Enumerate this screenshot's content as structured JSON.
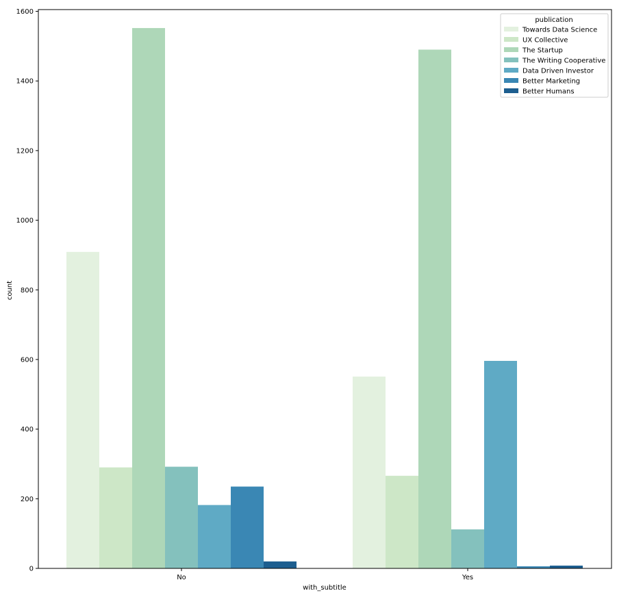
{
  "chart_data": {
    "type": "bar",
    "title": "",
    "xlabel": "with_subtitle",
    "ylabel": "count",
    "categories": [
      "No",
      "Yes"
    ],
    "ylim": [
      0,
      1605
    ],
    "yticks": [
      0,
      200,
      400,
      600,
      800,
      1000,
      1200,
      1400,
      1600
    ],
    "grid": false,
    "legend": {
      "title": "publication",
      "placement": "top-right"
    },
    "series": [
      {
        "name": "Towards Data Science",
        "color": "#e3f1df",
        "values": [
          909,
          551
        ]
      },
      {
        "name": "UX Collective",
        "color": "#cde7c7",
        "values": [
          290,
          266
        ]
      },
      {
        "name": "The Startup",
        "color": "#aed7b8",
        "values": [
          1552,
          1490
        ]
      },
      {
        "name": "The Writing Cooperative",
        "color": "#84c1bd",
        "values": [
          292,
          112
        ]
      },
      {
        "name": "Data Driven Investor",
        "color": "#5faac5",
        "values": [
          182,
          596
        ]
      },
      {
        "name": "Better Marketing",
        "color": "#3a87b4",
        "values": [
          235,
          6
        ]
      },
      {
        "name": "Better Humans",
        "color": "#1d5e8f",
        "values": [
          20,
          8
        ]
      }
    ]
  }
}
